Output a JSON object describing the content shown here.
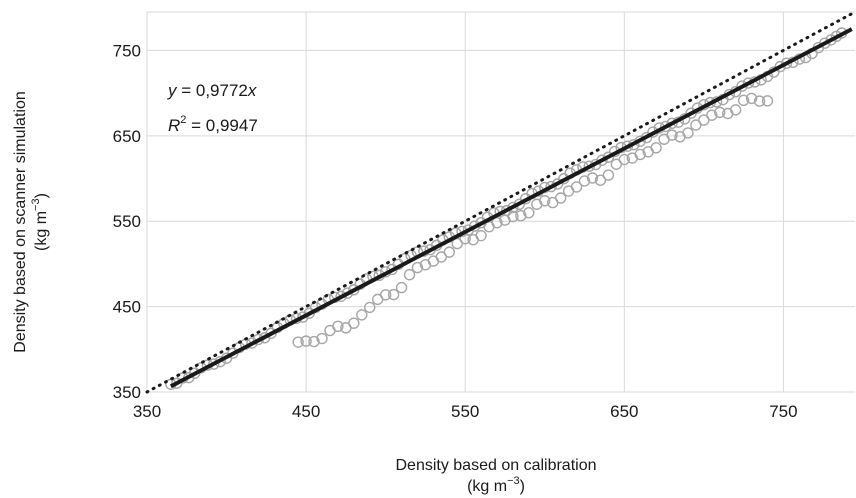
{
  "chart_data": {
    "type": "scatter",
    "xlabel": "Density based on calibration",
    "xunit_prefix": "(kg m",
    "xunit_exp": "−3",
    "xunit_suffix": ")",
    "ylabel": "Density based on scanner simulation",
    "yunit_prefix": "(kg m",
    "yunit_exp": "−3",
    "yunit_suffix": ")",
    "xlim": [
      350,
      795
    ],
    "ylim": [
      350,
      795
    ],
    "xticks": [
      "350",
      "450",
      "550",
      "650",
      "750"
    ],
    "yticks": [
      "350",
      "450",
      "550",
      "650",
      "750"
    ],
    "grid": true,
    "equation": {
      "y": "y",
      "eq": " = 0,9772",
      "x": "x",
      "slope": 0.9772
    },
    "r2": {
      "r": "R",
      "exp": "2",
      "eq": " = 0,9947"
    },
    "colors": {
      "points": "#a6a6a6",
      "fit": "#1a1a1a",
      "identity": "#1a1a1a",
      "grid": "#d9d9d9"
    },
    "fit_line": {
      "x": [
        365,
        793
      ]
    },
    "identity_line": {
      "x": [
        350,
        795
      ]
    },
    "points_upper": {
      "x": [
        365,
        380,
        400,
        420,
        440,
        460,
        480,
        500,
        520,
        540,
        560,
        580,
        600,
        620,
        640,
        660,
        680,
        700,
        720,
        740,
        760,
        780,
        790
      ],
      "y": [
        358,
        372,
        392,
        412,
        432,
        452,
        472,
        492,
        512,
        530,
        550,
        568,
        588,
        608,
        626,
        646,
        664,
        684,
        702,
        722,
        740,
        760,
        772
      ]
    },
    "points_lower": {
      "x": [
        445,
        455,
        465,
        475,
        485,
        495,
        505,
        515,
        525,
        535,
        545,
        555,
        565,
        575,
        585,
        595,
        605,
        615,
        625,
        635,
        645,
        655,
        665,
        675,
        685,
        695,
        705,
        715,
        725,
        735,
        745
      ],
      "y": [
        408,
        412,
        418,
        428,
        440,
        456,
        468,
        484,
        500,
        510,
        520,
        532,
        542,
        550,
        560,
        566,
        574,
        586,
        594,
        602,
        614,
        624,
        634,
        642,
        652,
        662,
        672,
        680,
        688,
        692,
        694
      ]
    }
  }
}
